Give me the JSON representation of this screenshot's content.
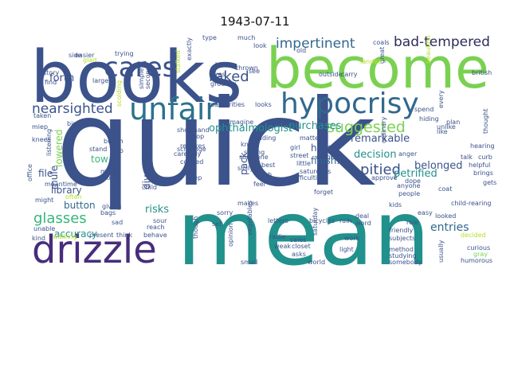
{
  "title": "1943-07-11",
  "words": [
    {
      "text": "quick",
      "color": "#3b528b"
    },
    {
      "text": "mean",
      "color": "#21918c"
    },
    {
      "text": "books",
      "color": "#3b528b"
    },
    {
      "text": "become",
      "color": "#7ad151"
    },
    {
      "text": "drizzle",
      "color": "#472d7b"
    },
    {
      "text": "hypocrisy",
      "color": "#31688e"
    },
    {
      "text": "unfair",
      "color": "#2c728e"
    },
    {
      "text": "cares",
      "color": "#3b528b"
    },
    {
      "text": "impertinent",
      "color": "#31688e"
    },
    {
      "text": "bad-tempered",
      "color": "#2c2c5c"
    },
    {
      "text": "suggested",
      "color": "#7ad151"
    },
    {
      "text": "raked",
      "color": "#3b528b"
    },
    {
      "text": "nearsighted",
      "color": "#3b528b"
    },
    {
      "text": "ophthalmologist",
      "color": "#21918c"
    },
    {
      "text": "glasses",
      "color": "#35b779"
    },
    {
      "text": "pitied",
      "color": "#3b528b"
    },
    {
      "text": "petrified",
      "color": "#21918c"
    },
    {
      "text": "belonged",
      "color": "#3b528b"
    },
    {
      "text": "decision",
      "color": "#21918c"
    },
    {
      "text": "entries",
      "color": "#31688e"
    },
    {
      "text": "accuracy",
      "color": "#21918c"
    },
    {
      "text": "forth",
      "color": "#3b528b"
    },
    {
      "text": "remarkable",
      "color": "#3b528b"
    },
    {
      "text": "purchases",
      "color": "#21918c"
    },
    {
      "text": "library",
      "color": "#3b528b"
    },
    {
      "text": "button",
      "color": "#31688e"
    },
    {
      "text": "risks",
      "color": "#21918c"
    },
    {
      "text": "file",
      "color": "#3b528b"
    },
    {
      "text": "hem",
      "color": "#3b528b"
    },
    {
      "text": "finish.",
      "color": "#31688e"
    },
    {
      "text": "diversions",
      "color": "#3b528b"
    },
    {
      "text": "lowered",
      "color": "#7ad151"
    },
    {
      "text": "mule",
      "color": "#3b528b"
    },
    {
      "text": "tow",
      "color": "#35b779"
    },
    {
      "text": "pack",
      "color": "#3b528b"
    },
    {
      "text": "child-rearing",
      "color": "#3b528b"
    },
    {
      "text": "humorous",
      "color": "#3b528b"
    },
    {
      "text": "curious",
      "color": "#3b528b"
    },
    {
      "text": "gray",
      "color": "#7ad151"
    },
    {
      "text": "decided",
      "color": "#b5de2b"
    },
    {
      "text": "usually",
      "color": "#3b528b"
    },
    {
      "text": "helpful",
      "color": "#3b528b"
    },
    {
      "text": "brings",
      "color": "#3b528b"
    },
    {
      "text": "gets",
      "color": "#3b528b"
    },
    {
      "text": "hearing",
      "color": "#3b528b"
    },
    {
      "text": "talk",
      "color": "#3b528b"
    },
    {
      "text": "curb",
      "color": "#3b528b"
    },
    {
      "text": "plan",
      "color": "#3b528b"
    },
    {
      "text": "thought",
      "color": "#3b528b"
    },
    {
      "text": "spend",
      "color": "#3b528b"
    },
    {
      "text": "hiding",
      "color": "#3b528b"
    },
    {
      "text": "british",
      "color": "#3b528b"
    },
    {
      "text": "every",
      "color": "#3b528b"
    },
    {
      "text": "unlike",
      "color": "#3b528b"
    },
    {
      "text": "glad",
      "color": "#b5de2b"
    },
    {
      "text": "trying",
      "color": "#3b528b"
    },
    {
      "text": "story",
      "color": "#3b528b"
    },
    {
      "text": "find",
      "color": "#3b528b"
    },
    {
      "text": "large",
      "color": "#3b528b"
    },
    {
      "text": "easier",
      "color": "#3b528b"
    },
    {
      "text": "side",
      "color": "#3b528b"
    },
    {
      "text": "simple",
      "color": "#3b528b"
    },
    {
      "text": "second",
      "color": "#3b528b"
    },
    {
      "text": "taken",
      "color": "#3b528b"
    },
    {
      "text": "miep",
      "color": "#3b528b"
    },
    {
      "text": "big",
      "color": "#3b528b"
    },
    {
      "text": "knees",
      "color": "#3b528b"
    },
    {
      "text": "office",
      "color": "#3b528b"
    },
    {
      "text": "listening",
      "color": "#3b528b"
    },
    {
      "text": "might",
      "color": "#3b528b"
    },
    {
      "text": "meantime",
      "color": "#3b528b"
    },
    {
      "text": "unable",
      "color": "#3b528b"
    },
    {
      "text": "kind",
      "color": "#3b528b"
    },
    {
      "text": "walking",
      "color": "#b5de2b"
    },
    {
      "text": "present",
      "color": "#3b528b"
    },
    {
      "text": "think",
      "color": "#3b528b"
    },
    {
      "text": "behave",
      "color": "#3b528b"
    },
    {
      "text": "giving",
      "color": "#3b528b"
    },
    {
      "text": "bags",
      "color": "#3b528b"
    },
    {
      "text": "sad",
      "color": "#3b528b"
    },
    {
      "text": "model",
      "color": "#3b528b"
    },
    {
      "text": "month",
      "color": "#3b528b"
    },
    {
      "text": "stand",
      "color": "#3b528b"
    },
    {
      "text": "bunch",
      "color": "#3b528b"
    },
    {
      "text": "ago",
      "color": "#3b528b"
    },
    {
      "text": "often",
      "color": "#b5de2b"
    },
    {
      "text": "child",
      "color": "#3b528b"
    },
    {
      "text": "sour",
      "color": "#3b528b"
    },
    {
      "text": "reach",
      "color": "#3b528b"
    },
    {
      "text": "scrounge",
      "color": "#3b528b"
    },
    {
      "text": "cooped",
      "color": "#3b528b"
    },
    {
      "text": "step",
      "color": "#3b528b"
    },
    {
      "text": "rebukes",
      "color": "#3b528b"
    },
    {
      "text": "carefully",
      "color": "#3b528b"
    },
    {
      "text": "drop",
      "color": "#3b528b"
    },
    {
      "text": "shorthand",
      "color": "#3b528b"
    },
    {
      "text": "imagine",
      "color": "#3b528b"
    },
    {
      "text": "authorities",
      "color": "#3b528b"
    },
    {
      "text": "looks",
      "color": "#3b528b"
    },
    {
      "text": "reading",
      "color": "#3b528b"
    },
    {
      "text": "know",
      "color": "#3b528b"
    },
    {
      "text": "saying",
      "color": "#3b528b"
    },
    {
      "text": "someone",
      "color": "#3b528b"
    },
    {
      "text": "sicily",
      "color": "#3b528b"
    },
    {
      "text": "best",
      "color": "#3b528b"
    },
    {
      "text": "feel",
      "color": "#3b528b"
    },
    {
      "text": "makes",
      "color": "#3b528b"
    },
    {
      "text": "letters",
      "color": "#3b528b"
    },
    {
      "text": "vegetables",
      "color": "#3b528b"
    },
    {
      "text": "radio",
      "color": "#3b528b"
    },
    {
      "text": "sales",
      "color": "#3b528b"
    },
    {
      "text": "weak",
      "color": "#3b528b"
    },
    {
      "text": "closet",
      "color": "#3b528b"
    },
    {
      "text": "small",
      "color": "#3b528b"
    },
    {
      "text": "world",
      "color": "#3b528b"
    },
    {
      "text": "bicycles",
      "color": "#3b528b"
    },
    {
      "text": "rain",
      "color": "#3b528b"
    },
    {
      "text": "deal",
      "color": "#3b528b"
    },
    {
      "text": "word",
      "color": "#3b528b"
    },
    {
      "text": "work",
      "color": "#3b528b"
    },
    {
      "text": "light",
      "color": "#3b528b"
    },
    {
      "text": "subjects",
      "color": "#3b528b"
    },
    {
      "text": "method",
      "color": "#3b528b"
    },
    {
      "text": "studying",
      "color": "#3b528b"
    },
    {
      "text": "somebody",
      "color": "#3b528b"
    },
    {
      "text": "friendly",
      "color": "#3b528b"
    },
    {
      "text": "role",
      "color": "#3b528b"
    },
    {
      "text": "kids",
      "color": "#3b528b"
    },
    {
      "text": "easy",
      "color": "#3b528b"
    },
    {
      "text": "anyone",
      "color": "#3b528b"
    },
    {
      "text": "people",
      "color": "#3b528b"
    },
    {
      "text": "coat",
      "color": "#3b528b"
    },
    {
      "text": "looked",
      "color": "#3b528b"
    },
    {
      "text": "dope",
      "color": "#3b528b"
    },
    {
      "text": "approve",
      "color": "#3b528b"
    },
    {
      "text": "difficulties",
      "color": "#3b528b"
    },
    {
      "text": "saturdays",
      "color": "#3b528b"
    },
    {
      "text": "forget",
      "color": "#3b528b"
    },
    {
      "text": "anger",
      "color": "#3b528b"
    },
    {
      "text": "street",
      "color": "#3b528b"
    },
    {
      "text": "weigh",
      "color": "#3b528b"
    },
    {
      "text": "girl",
      "color": "#3b528b"
    },
    {
      "text": "matter",
      "color": "#3b528b"
    },
    {
      "text": "little",
      "color": "#3b528b"
    },
    {
      "text": "coals",
      "color": "#3b528b"
    },
    {
      "text": "old",
      "color": "#3b528b"
    },
    {
      "text": "much",
      "color": "#3b528b"
    },
    {
      "text": "look",
      "color": "#3b528b"
    },
    {
      "text": "type",
      "color": "#3b528b"
    },
    {
      "text": "book",
      "color": "#3b528b"
    },
    {
      "text": "eyes",
      "color": "#3b528b"
    },
    {
      "text": "grouchy",
      "color": "#3b528b"
    },
    {
      "text": "see",
      "color": "#3b528b"
    },
    {
      "text": "exactly",
      "color": "#3b528b"
    },
    {
      "text": "outside",
      "color": "#3b528b"
    },
    {
      "text": "carry",
      "color": "#3b528b"
    },
    {
      "text": "great",
      "color": "#3b528b"
    },
    {
      "text": "landed",
      "color": "#b5de2b"
    },
    {
      "text": "beautiful",
      "color": "#b5de2b"
    },
    {
      "text": "ugh",
      "color": "#3b528b"
    },
    {
      "text": "sorry",
      "color": "#3b528b"
    },
    {
      "text": "opinion",
      "color": "#3b528b"
    },
    {
      "text": "set",
      "color": "#3b528b"
    },
    {
      "text": "though",
      "color": "#3b528b"
    },
    {
      "text": "saturday",
      "color": "#3b528b"
    },
    {
      "text": "like",
      "color": "#3b528b"
    },
    {
      "text": "ordinary",
      "color": "#3b528b"
    },
    {
      "text": "asks",
      "color": "#3b528b"
    },
    {
      "text": "thrown",
      "color": "#3b528b"
    },
    {
      "text": "stalked",
      "color": "#b5de2b"
    },
    {
      "text": "scolding",
      "color": "#b5de2b"
    }
  ]
}
